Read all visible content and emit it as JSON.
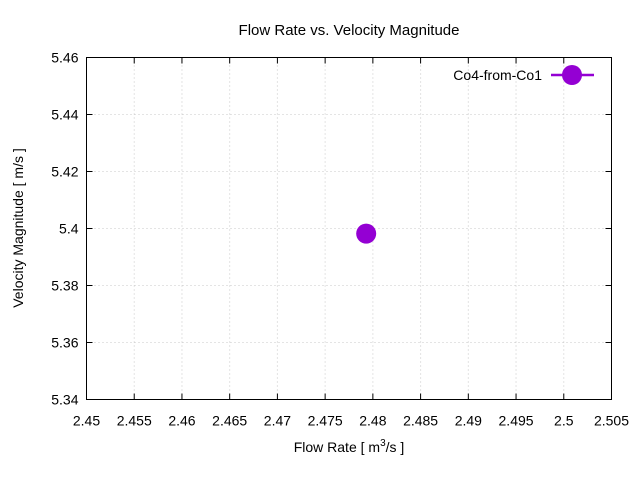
{
  "chart_data": {
    "type": "scatter",
    "title": "Flow Rate vs. Velocity Magnitude",
    "xlabel": {
      "prefix": "Flow Rate [ m",
      "superscript": "3",
      "suffix": "/s ]"
    },
    "ylabel": "Velocity Magnitude [ m/s ]",
    "xlim": [
      2.45,
      2.505
    ],
    "ylim": [
      5.34,
      5.46
    ],
    "xticks": [
      "2.45",
      "2.455",
      "2.46",
      "2.465",
      "2.47",
      "2.475",
      "2.48",
      "2.485",
      "2.49",
      "2.495",
      "2.5",
      "2.505"
    ],
    "yticks": [
      "5.34",
      "5.36",
      "5.38",
      "5.4",
      "5.42",
      "5.44",
      "5.46"
    ],
    "grid": true,
    "legend_position": "top-right",
    "series": [
      {
        "name": "Co4-from-Co1",
        "color": "#9400d3",
        "marker": "circle",
        "points": [
          {
            "x": 2.4793,
            "y": 5.3982
          }
        ]
      }
    ]
  }
}
